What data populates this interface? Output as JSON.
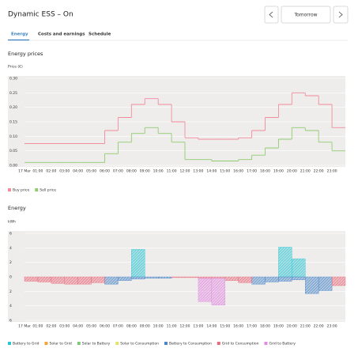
{
  "header": {
    "title": "Dynamic ESS – On",
    "date_button": "Tomorrow"
  },
  "tabs": [
    "Energy",
    "Costs and earnings",
    "Schedule"
  ],
  "chart_data": [
    {
      "type": "step",
      "title": "Energy prices",
      "y_label": "Price (€)",
      "categories": [
        "17 Mar",
        "01:00",
        "02:00",
        "03:00",
        "04:00",
        "05:00",
        "06:00",
        "07:00",
        "08:00",
        "09:00",
        "10:00",
        "11:00",
        "12:00",
        "13:00",
        "14:00",
        "15:00",
        "16:00",
        "17:00",
        "18:00",
        "19:00",
        "20:00",
        "21:00",
        "22:00",
        "23:00"
      ],
      "series": [
        {
          "name": "Buy price",
          "color": "#f28b9b",
          "values": [
            0.075,
            0.075,
            0.075,
            0.075,
            0.075,
            0.075,
            0.12,
            0.165,
            0.21,
            0.23,
            0.21,
            0.15,
            0.095,
            0.09,
            0.09,
            0.09,
            0.095,
            0.12,
            0.165,
            0.21,
            0.25,
            0.24,
            0.21,
            0.13
          ]
        },
        {
          "name": "Sell price",
          "color": "#8fcc6f",
          "values": [
            0.01,
            0.01,
            0.01,
            0.01,
            0.01,
            0.01,
            0.04,
            0.08,
            0.11,
            0.13,
            0.11,
            0.08,
            0.02,
            0.02,
            0.015,
            0.015,
            0.02,
            0.035,
            0.06,
            0.09,
            0.13,
            0.12,
            0.08,
            0.05
          ]
        }
      ],
      "ylim": [
        0,
        0.3
      ],
      "yticks": [
        {
          "value": 0,
          "label": "0.00"
        },
        {
          "value": 0.05,
          "label": "0.05"
        },
        {
          "value": 0.1,
          "label": "0.10"
        },
        {
          "value": 0.15,
          "label": "0.15"
        },
        {
          "value": 0.2,
          "label": "0.20"
        },
        {
          "value": 0.25,
          "label": "0.25"
        },
        {
          "value": 0.3,
          "label": "0.30"
        }
      ],
      "grid": true
    },
    {
      "type": "bar",
      "stacked": true,
      "title": "Energy",
      "y_label": "kWh",
      "categories": [
        "17 Mar",
        "01:00",
        "02:00",
        "03:00",
        "04:00",
        "05:00",
        "06:00",
        "07:00",
        "08:00",
        "09:00",
        "10:00",
        "11:00",
        "12:00",
        "13:00",
        "14:00",
        "15:00",
        "16:00",
        "17:00",
        "18:00",
        "19:00",
        "20:00",
        "21:00",
        "22:00",
        "23:00"
      ],
      "series": [
        {
          "name": "Battery to Grid",
          "color": "#2ec5d3",
          "values": [
            0,
            0,
            0,
            0,
            0,
            0,
            0,
            0,
            3.8,
            0,
            0,
            0,
            0,
            0,
            0,
            0,
            0,
            0,
            0,
            4.1,
            2.5,
            0,
            0,
            0
          ]
        },
        {
          "name": "Solar to Grid",
          "color": "#f2a33a",
          "values": [
            0,
            0,
            0,
            0,
            0,
            0,
            0,
            0,
            0,
            0,
            0,
            0,
            0,
            0,
            0,
            0,
            0,
            0,
            0,
            0,
            0,
            0,
            0,
            0
          ]
        },
        {
          "name": "Solar to Battery",
          "color": "#7fc77f",
          "values": [
            0,
            0,
            0,
            0,
            0,
            0,
            0,
            0,
            0,
            0,
            0,
            0,
            0,
            0,
            0,
            0,
            0,
            0,
            0,
            0,
            0,
            0,
            0,
            0
          ]
        },
        {
          "name": "Solar to Consumption",
          "color": "#e3e36a",
          "values": [
            0,
            0,
            0,
            0,
            0,
            0,
            0,
            0,
            0,
            0,
            0,
            0,
            0,
            0,
            0,
            0,
            0,
            0,
            0,
            0,
            0,
            0,
            0,
            0
          ]
        },
        {
          "name": "Battery to Consumption",
          "color": "#4a86c8",
          "values": [
            0,
            0,
            0,
            0,
            0,
            0,
            -1.0,
            -0.5,
            -0.3,
            -0.2,
            -0.2,
            0,
            0,
            0,
            0,
            0,
            0,
            -1.0,
            -0.7,
            -0.6,
            -0.4,
            -2.3,
            -1.9,
            0
          ]
        },
        {
          "name": "Grid to Consumption",
          "color": "#e8697a",
          "values": [
            -0.6,
            -0.7,
            -0.9,
            -1.0,
            -1.0,
            -0.8,
            0,
            0,
            0,
            0,
            0,
            -0.1,
            -0.1,
            -0.2,
            -0.2,
            -0.5,
            -0.8,
            0,
            0,
            0,
            0,
            0,
            0,
            -1.2
          ]
        },
        {
          "name": "Grid to Battery",
          "color": "#e08be0",
          "values": [
            0,
            0,
            0,
            0,
            0,
            0,
            0,
            0,
            0,
            0,
            0,
            0,
            0,
            -3.2,
            -3.7,
            0,
            0,
            0,
            0,
            0,
            0,
            0,
            0,
            0
          ]
        }
      ],
      "ylim": [
        -6,
        6
      ],
      "yticks": [
        6,
        4,
        2,
        0,
        {
          "value": -2,
          "label": "2"
        },
        {
          "value": -4,
          "label": "4"
        },
        {
          "value": -6,
          "label": "6"
        }
      ],
      "grid": true
    }
  ]
}
